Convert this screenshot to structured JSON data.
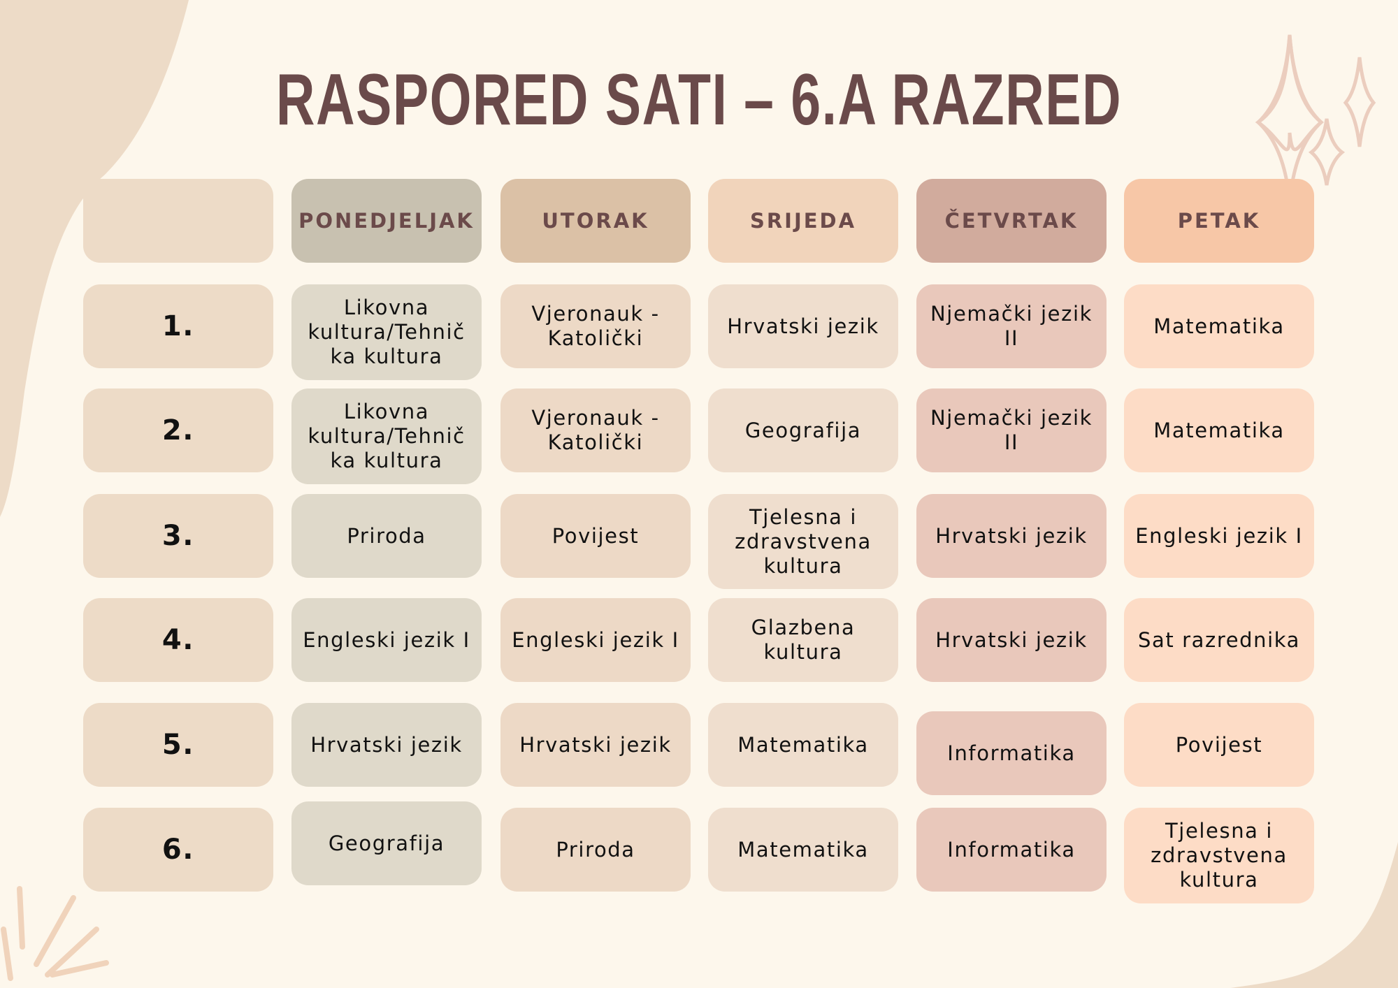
{
  "title": "RASPORED SATI – 6.A RAZRED",
  "colors": {
    "background": "#fdf7ec",
    "title": "#6a4a4a",
    "header": [
      "#eddbc7",
      "#c8c1b0",
      "#dbc1a6",
      "#f1d4bb",
      "#d1ab9d",
      "#f7c7a7"
    ],
    "body": [
      "#eddbc7",
      "#dfd9ca",
      "#edd9c6",
      "#efdece",
      "#e9c8bb",
      "#fddcc6"
    ]
  },
  "days": [
    "PONEDJELJAK",
    "UTORAK",
    "SRIJEDA",
    "ČETVRTAK",
    "PETAK"
  ],
  "rows": [
    {
      "period": "1.",
      "lessons": [
        "Likovna kultura/Tehnič ka kultura",
        "Vjeronauk - Katolički",
        "Hrvatski jezik",
        "Njemački jezik II",
        "Matematika"
      ]
    },
    {
      "period": "2.",
      "lessons": [
        "Likovna kultura/Tehnič ka kultura",
        "Vjeronauk - Katolički",
        "Geografija",
        "Njemački jezik II",
        "Matematika"
      ]
    },
    {
      "period": "3.",
      "lessons": [
        "Priroda",
        "Povijest",
        "Tjelesna i zdravstvena kultura",
        "Hrvatski jezik",
        "Engleski jezik I"
      ]
    },
    {
      "period": "4.",
      "lessons": [
        "Engleski jezik I",
        "Engleski jezik I",
        "Glazbena kultura",
        "Hrvatski jezik",
        "Sat razrednika"
      ]
    },
    {
      "period": "5.",
      "lessons": [
        "Hrvatski jezik",
        "Hrvatski jezik",
        "Matematika",
        "Informatika",
        "Povijest"
      ]
    },
    {
      "period": "6.",
      "lessons": [
        "Geografija",
        "Priroda",
        "Matematika",
        "Informatika",
        "Tjelesna i zdravstvena kultura"
      ]
    }
  ]
}
